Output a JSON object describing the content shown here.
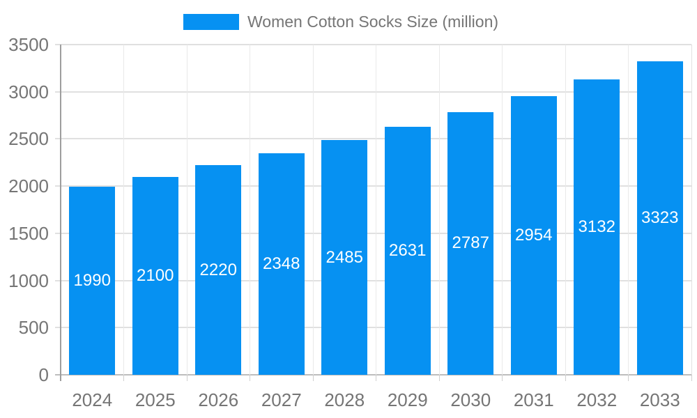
{
  "legend": {
    "label": "Women Cotton Socks Size (million)"
  },
  "colors": {
    "bar": "#0691F2",
    "grid": "#e0e0e0",
    "vgrid": "#e9e9e9",
    "baseline": "#bdbdbd",
    "axis_line": "#9e9e9e",
    "tick": "#cfcfcf",
    "axis_text": "#757575",
    "value_label": "#ffffff",
    "background": "#ffffff"
  },
  "chart_data": {
    "type": "bar",
    "title": "Women Cotton Socks Size (million)",
    "series_name": "Women Cotton Socks Size (million)",
    "categories": [
      "2024",
      "2025",
      "2026",
      "2027",
      "2028",
      "2029",
      "2030",
      "2031",
      "2032",
      "2033"
    ],
    "values": [
      1990,
      2100,
      2220,
      2348,
      2485,
      2631,
      2787,
      2954,
      3132,
      3323
    ],
    "xlabel": "",
    "ylabel": "",
    "ylim": [
      0,
      3500
    ],
    "yticks": [
      0,
      500,
      1000,
      1500,
      2000,
      2500,
      3000,
      3500
    ],
    "grid": true,
    "legend_position": "top",
    "value_label_position": "inside-center"
  }
}
